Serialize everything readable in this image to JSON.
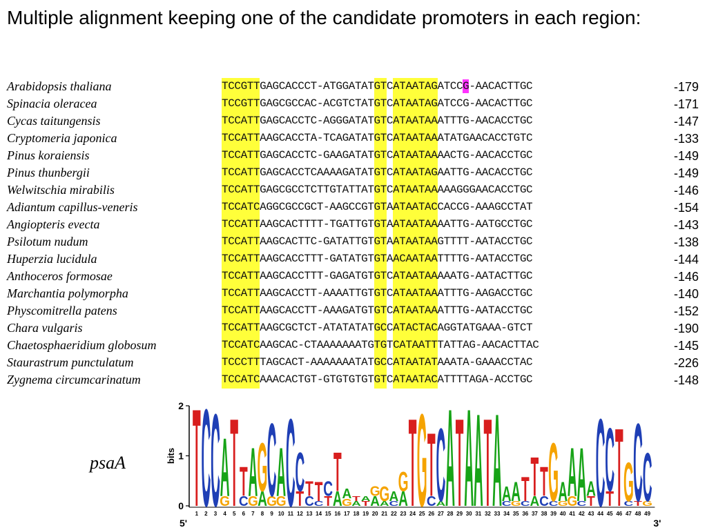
{
  "title": "Multiple alignment keeping one of the candidate promoters in each region:",
  "alignment": {
    "rows": [
      {
        "species": "Arabidopsis thaliana",
        "sequence": "TCCGTTGAGCACCCT-ATGGATATGTCATAATAGATCCG-AACACTTGC",
        "position": "-179",
        "highlight_index": 38
      },
      {
        "species": "Spinacia oleracea",
        "sequence": "TCCGTTGAGCGCCAC-ACGTCTATGTCATAATAGATCCG-AACACTTGC",
        "position": "-171"
      },
      {
        "species": "Cycas taitungensis",
        "sequence": "TCCATTGAGCACCTC-AGGGATATGTCATAATAAATTTG-AACACCTGC",
        "position": "-147"
      },
      {
        "species": "Cryptomeria japonica",
        "sequence": "TCCATTAAGCACCTA-TCAGATATGTCATAATAAATATGAACACCTGTC",
        "position": "-133"
      },
      {
        "species": "Pinus koraiensis",
        "sequence": "TCCATTGAGCACCTC-GAAGATATGTCATAATAAAACTG-AACACCTGC",
        "position": "-149"
      },
      {
        "species": "Pinus thunbergii",
        "sequence": "TCCATTGAGCACCTCAAAAGATATGTCATAATAGAATTG-AACACCTGC",
        "position": "-149"
      },
      {
        "species": "Welwitschia mirabilis",
        "sequence": "TCCATTGAGCGCCTCTTGTATTATGTCATAATAAAAAGGGAACACCTGC",
        "position": "-146"
      },
      {
        "species": "Adiantum capillus-veneris",
        "sequence": "TCCATCAGGCGCCGCT-AAGCCGTGTAATAATACCACCG-AAAGCCTAT",
        "position": "-154"
      },
      {
        "species": "Angiopteris evecta",
        "sequence": "TCCATTAAGCACTTTT-TGATTGTGTAATAATAAAATTG-AATGCCTGC",
        "position": "-143"
      },
      {
        "species": "Psilotum nudum",
        "sequence": "TCCATTAAGCACTTC-GATATTGTGTAATAATAAGTTTT-AATACCTGC",
        "position": "-138"
      },
      {
        "species": "Huperzia lucidula",
        "sequence": "TCCATTAAGCACCTTT-GATATGTGTAACAATAATTTTG-AATACCTGC",
        "position": "-144"
      },
      {
        "species": "Anthoceros formosae",
        "sequence": "TCCATTAAGCACCTTT-GAGATGTGTCATAATAAAAATG-AATACTTGC",
        "position": "-146"
      },
      {
        "species": "Marchantia polymorpha",
        "sequence": "TCCATTAAGCACCTT-AAAATTGTGTCATAATAAATTTG-AAGACCTGC",
        "position": "-140"
      },
      {
        "species": "Physcomitrella patens",
        "sequence": "TCCATTAAGCACCTT-AAAGATGTGTCATAATAAATTTG-AATACCTGC",
        "position": "-152"
      },
      {
        "species": "Chara vulgaris",
        "sequence": "TCCATTAAGCGCTCT-ATATATATGCCATACTACAGGTATGAAA-GTCT",
        "position": "-190"
      },
      {
        "species": "Chaetosphaeridium globosum",
        "sequence": "TCCATCAAGCAC-CTAAAAAAATGTGTCATAATTTATTAG-AACACTTAC",
        "position": "-145"
      },
      {
        "species": "Staurastrum punctulatum",
        "sequence": "TCCCTTTAGCACT-AAAAAAATATGCCATAATATAAATA-GAAACCTAC",
        "position": "-226"
      },
      {
        "species": "Zygnema circumcarinatum",
        "sequence": "TCCATCAAACACTGT-GTGTGTGTGTCATAATACATTTTAGA-ACCTGC",
        "position": "-148"
      }
    ],
    "highlight_color": "#ffff3a",
    "mismatch_color": "#ff33ff"
  },
  "logo": {
    "label": "psaA",
    "axis_label": "bits",
    "y_ticks": [
      "0",
      "1",
      "2"
    ],
    "end5": "5'",
    "end3": "3'",
    "positions": [
      "1",
      "2",
      "3",
      "4",
      "5",
      "6",
      "7",
      "8",
      "9",
      "10",
      "11",
      "12",
      "13",
      "14",
      "15",
      "16",
      "17",
      "18",
      "19",
      "20",
      "21",
      "22",
      "23",
      "24",
      "25",
      "26",
      "27",
      "28",
      "29",
      "30",
      "31",
      "32",
      "33",
      "34",
      "35",
      "36",
      "37",
      "38",
      "39",
      "40",
      "41",
      "42",
      "43",
      "44",
      "45",
      "46",
      "47",
      "48",
      "49"
    ],
    "colors": {
      "A": "#17a317",
      "C": "#1f3fb5",
      "G": "#f5a300",
      "T": "#d81e1e"
    },
    "stacks": [
      [
        [
          "T",
          2.0
        ]
      ],
      [
        [
          "C",
          2.0
        ]
      ],
      [
        [
          "C",
          1.9
        ]
      ],
      [
        [
          "A",
          1.2
        ],
        [
          "G",
          0.2
        ]
      ],
      [
        [
          "T",
          1.8
        ]
      ],
      [
        [
          "T",
          0.6
        ],
        [
          "C",
          0.2
        ]
      ],
      [
        [
          "A",
          1.0
        ],
        [
          "G",
          0.2
        ]
      ],
      [
        [
          "G",
          1.0
        ],
        [
          "A",
          0.3
        ]
      ],
      [
        [
          "C",
          1.5
        ],
        [
          "G",
          0.2
        ]
      ],
      [
        [
          "A",
          1.0
        ],
        [
          "G",
          0.2
        ]
      ],
      [
        [
          "C",
          1.8
        ]
      ],
      [
        [
          "C",
          0.8
        ],
        [
          "T",
          0.3
        ]
      ],
      [
        [
          "T",
          0.3
        ],
        [
          "C",
          0.2
        ]
      ],
      [
        [
          "T",
          0.4
        ],
        [
          "C",
          0.1
        ]
      ],
      [
        [
          "C",
          0.3
        ],
        [
          "T",
          0.2
        ]
      ],
      [
        [
          "T",
          0.8
        ],
        [
          "A",
          0.3
        ]
      ],
      [
        [
          "A",
          0.2
        ],
        [
          "G",
          0.15
        ]
      ],
      [
        [
          "A",
          0.1
        ],
        [
          "T",
          0.1
        ]
      ],
      [
        [
          "T",
          0.1
        ],
        [
          "A",
          0.1
        ]
      ],
      [
        [
          "A",
          0.2
        ],
        [
          "G",
          0.2
        ]
      ],
      [
        [
          "G",
          0.3
        ],
        [
          "A",
          0.1
        ]
      ],
      [
        [
          "A",
          0.2
        ],
        [
          "C",
          0.1
        ]
      ],
      [
        [
          "G",
          0.4
        ],
        [
          "A",
          0.3
        ]
      ],
      [
        [
          "T",
          1.8
        ]
      ],
      [
        [
          "G",
          1.9
        ]
      ],
      [
        [
          "T",
          1.3
        ],
        [
          "C",
          0.2
        ]
      ],
      [
        [
          "C",
          1.5
        ],
        [
          "A",
          0.1
        ]
      ],
      [
        [
          "A",
          2.0
        ]
      ],
      [
        [
          "T",
          1.8
        ]
      ],
      [
        [
          "A",
          2.0
        ]
      ],
      [
        [
          "A",
          1.9
        ]
      ],
      [
        [
          "T",
          1.8
        ]
      ],
      [
        [
          "A",
          1.9
        ]
      ],
      [
        [
          "A",
          0.3
        ],
        [
          "C",
          0.1
        ]
      ],
      [
        [
          "A",
          0.4
        ],
        [
          "G",
          0.1
        ]
      ],
      [
        [
          "T",
          0.5
        ],
        [
          "C",
          0.1
        ]
      ],
      [
        [
          "T",
          0.8
        ],
        [
          "A",
          0.2
        ]
      ],
      [
        [
          "T",
          0.6
        ],
        [
          "C",
          0.2
        ]
      ],
      [
        [
          "G",
          1.2
        ],
        [
          "C",
          0.1
        ]
      ],
      [
        [
          "A",
          0.4
        ],
        [
          "G",
          0.1
        ]
      ],
      [
        [
          "A",
          1.0
        ],
        [
          "G",
          0.2
        ]
      ],
      [
        [
          "A",
          1.1
        ],
        [
          "C",
          0.1
        ]
      ],
      [
        [
          "A",
          0.3
        ],
        [
          "T",
          0.2
        ]
      ],
      [
        [
          "C",
          1.8
        ]
      ],
      [
        [
          "C",
          1.3
        ],
        [
          "T",
          0.3
        ]
      ],
      [
        [
          "T",
          1.6
        ]
      ],
      [
        [
          "G",
          0.8
        ],
        [
          "C",
          0.1
        ]
      ],
      [
        [
          "C",
          1.6
        ],
        [
          "T",
          0.1
        ]
      ],
      [
        [
          "C",
          1.0
        ],
        [
          "G",
          0.1
        ]
      ]
    ]
  }
}
